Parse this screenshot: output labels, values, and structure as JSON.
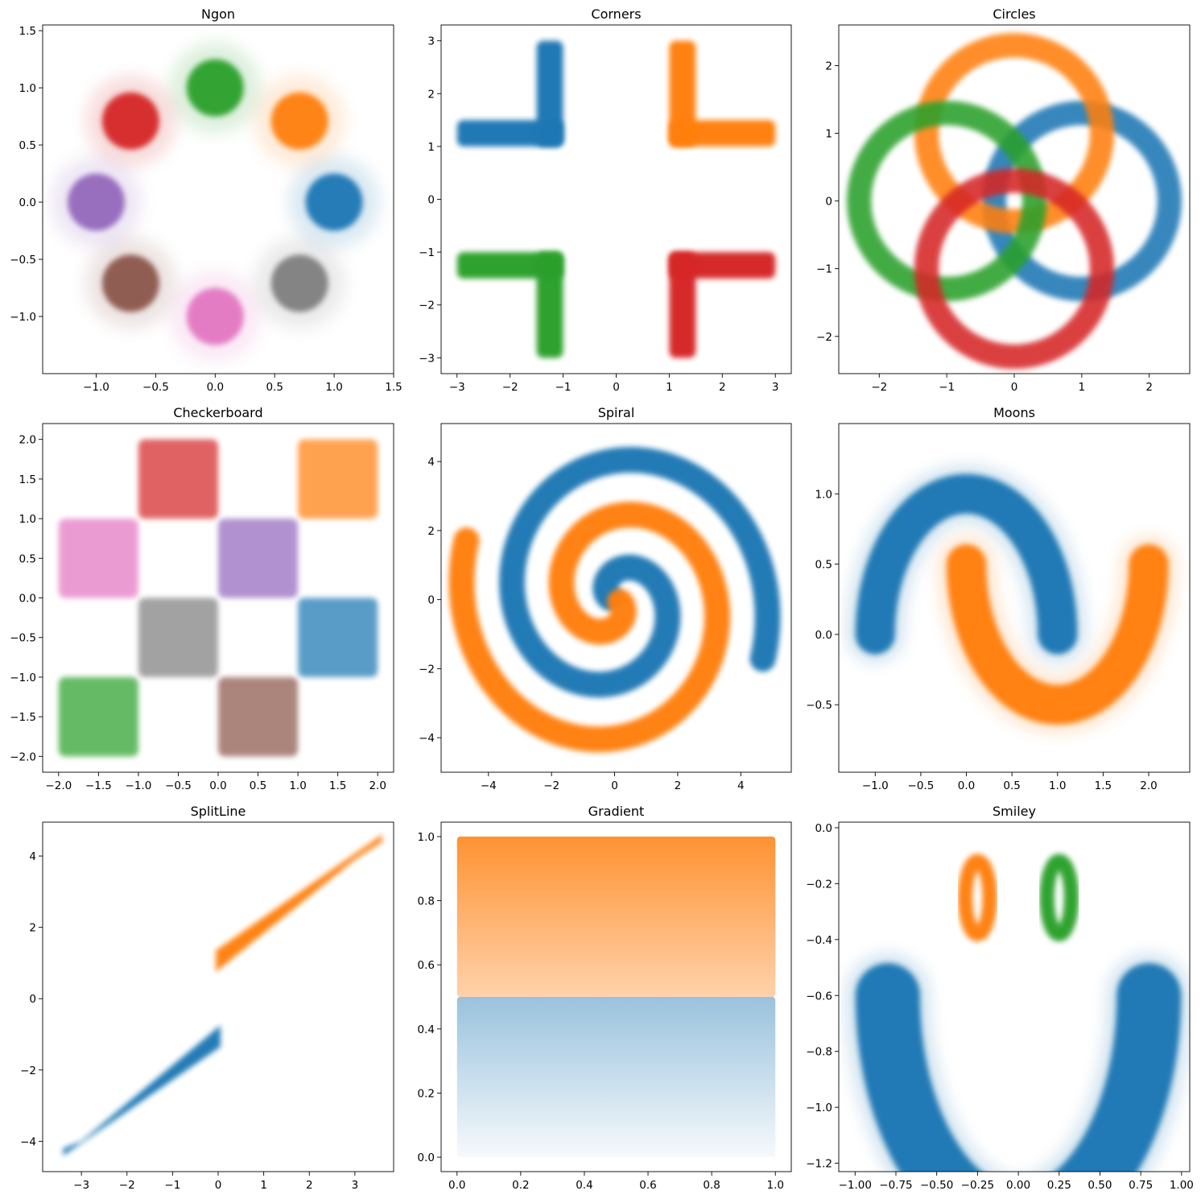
{
  "colors": {
    "blue": "#1f77b4",
    "orange": "#ff7f0e",
    "green": "#2ca02c",
    "red": "#d62728",
    "purple": "#9467bd",
    "brown": "#8c564b",
    "pink": "#e377c2",
    "gray": "#7f7f7f"
  },
  "chart_data": [
    {
      "type": "scatter",
      "title": "Ngon",
      "xlabel": "",
      "ylabel": "",
      "xlim": [
        -1.45,
        1.5
      ],
      "ylim": [
        -1.5,
        1.55
      ],
      "xticks": [
        -1.0,
        -0.5,
        0.0,
        0.5,
        1.0,
        1.5
      ],
      "xtick_labels": [
        "−1.0",
        "−0.5",
        "0.0",
        "0.5",
        "1.0",
        "1.5"
      ],
      "yticks": [
        -1.0,
        -0.5,
        0.0,
        0.5,
        1.0,
        1.5
      ],
      "ytick_labels": [
        "−1.0",
        "−0.5",
        "0.0",
        "0.5",
        "1.0",
        "1.5"
      ],
      "grid": false,
      "legend": false,
      "series": [
        {
          "color": "#1f77b4",
          "shape": "blob",
          "center": [
            1.0,
            0.0
          ],
          "radius": 0.2
        },
        {
          "color": "#ff7f0e",
          "shape": "blob",
          "center": [
            0.71,
            0.71
          ],
          "radius": 0.2
        },
        {
          "color": "#2ca02c",
          "shape": "blob",
          "center": [
            0.0,
            1.0
          ],
          "radius": 0.2
        },
        {
          "color": "#d62728",
          "shape": "blob",
          "center": [
            -0.71,
            0.71
          ],
          "radius": 0.2
        },
        {
          "color": "#9467bd",
          "shape": "blob",
          "center": [
            -1.0,
            0.0
          ],
          "radius": 0.2
        },
        {
          "color": "#8c564b",
          "shape": "blob",
          "center": [
            -0.71,
            -0.71
          ],
          "radius": 0.2
        },
        {
          "color": "#e377c2",
          "shape": "blob",
          "center": [
            0.0,
            -1.0
          ],
          "radius": 0.2
        },
        {
          "color": "#7f7f7f",
          "shape": "blob",
          "center": [
            0.71,
            -0.71
          ],
          "radius": 0.2
        }
      ]
    },
    {
      "type": "scatter",
      "title": "Corners",
      "xlabel": "",
      "ylabel": "",
      "xlim": [
        -3.3,
        3.3
      ],
      "ylim": [
        -3.3,
        3.3
      ],
      "xticks": [
        -3,
        -2,
        -1,
        0,
        1,
        2,
        3
      ],
      "xtick_labels": [
        "−3",
        "−2",
        "−1",
        "0",
        "1",
        "2",
        "3"
      ],
      "yticks": [
        -3,
        -2,
        -1,
        0,
        1,
        2,
        3
      ],
      "ytick_labels": [
        "−3",
        "−2",
        "−1",
        "0",
        "1",
        "2",
        "3"
      ],
      "grid": false,
      "legend": false,
      "series": [
        {
          "color": "#1f77b4",
          "shape": "rects",
          "rects": [
            [
              -3,
              1,
              -1,
              1.5
            ],
            [
              -1.5,
              1,
              -1,
              3
            ]
          ]
        },
        {
          "color": "#ff7f0e",
          "shape": "rects",
          "rects": [
            [
              1,
              1,
              3,
              1.5
            ],
            [
              1,
              1,
              1.5,
              3
            ]
          ]
        },
        {
          "color": "#2ca02c",
          "shape": "rects",
          "rects": [
            [
              -3,
              -1.5,
              -1,
              -1
            ],
            [
              -1.5,
              -3,
              -1,
              -1
            ]
          ]
        },
        {
          "color": "#d62728",
          "shape": "rects",
          "rects": [
            [
              1,
              -1.5,
              3,
              -1
            ],
            [
              1,
              -3,
              1.5,
              -1
            ]
          ]
        }
      ]
    },
    {
      "type": "scatter",
      "title": "Circles",
      "xlabel": "",
      "ylabel": "",
      "xlim": [
        -2.6,
        2.6
      ],
      "ylim": [
        -2.55,
        2.6
      ],
      "xticks": [
        -2,
        -1,
        0,
        1,
        2
      ],
      "xtick_labels": [
        "−2",
        "−1",
        "0",
        "1",
        "2"
      ],
      "yticks": [
        -2,
        -1,
        0,
        1,
        2
      ],
      "ytick_labels": [
        "−2",
        "−1",
        "0",
        "1",
        "2"
      ],
      "grid": false,
      "legend": false,
      "series": [
        {
          "color": "#1f77b4",
          "shape": "ring",
          "center": [
            1,
            0
          ],
          "radius": 1.3,
          "width": 0.18
        },
        {
          "color": "#ff7f0e",
          "shape": "ring",
          "center": [
            0,
            1
          ],
          "radius": 1.3,
          "width": 0.18
        },
        {
          "color": "#2ca02c",
          "shape": "ring",
          "center": [
            -1,
            0
          ],
          "radius": 1.3,
          "width": 0.18
        },
        {
          "color": "#d62728",
          "shape": "ring",
          "center": [
            0,
            -1
          ],
          "radius": 1.3,
          "width": 0.18
        }
      ]
    },
    {
      "type": "scatter",
      "title": "Checkerboard",
      "xlabel": "",
      "ylabel": "",
      "xlim": [
        -2.2,
        2.2
      ],
      "ylim": [
        -2.2,
        2.2
      ],
      "xticks": [
        -2.0,
        -1.5,
        -1.0,
        -0.5,
        0.0,
        0.5,
        1.0,
        1.5,
        2.0
      ],
      "xtick_labels": [
        "−2.0",
        "−1.5",
        "−1.0",
        "−0.5",
        "0.0",
        "0.5",
        "1.0",
        "1.5",
        "2.0"
      ],
      "yticks": [
        -2.0,
        -1.5,
        -1.0,
        -0.5,
        0.0,
        0.5,
        1.0,
        1.5,
        2.0
      ],
      "ytick_labels": [
        "−2.0",
        "−1.5",
        "−1.0",
        "−0.5",
        "0.0",
        "0.5",
        "1.0",
        "1.5",
        "2.0"
      ],
      "grid": false,
      "legend": false,
      "series": [
        {
          "color": "#1f77b4",
          "shape": "rects",
          "rects": [
            [
              1,
              -1,
              2,
              0
            ]
          ]
        },
        {
          "color": "#ff7f0e",
          "shape": "rects",
          "rects": [
            [
              1,
              1,
              2,
              2
            ]
          ]
        },
        {
          "color": "#2ca02c",
          "shape": "rects",
          "rects": [
            [
              -2,
              -2,
              -1,
              -1
            ]
          ]
        },
        {
          "color": "#d62728",
          "shape": "rects",
          "rects": [
            [
              -1,
              1,
              0,
              2
            ]
          ]
        },
        {
          "color": "#9467bd",
          "shape": "rects",
          "rects": [
            [
              0,
              0,
              1,
              1
            ]
          ]
        },
        {
          "color": "#8c564b",
          "shape": "rects",
          "rects": [
            [
              0,
              -2,
              1,
              -1
            ]
          ]
        },
        {
          "color": "#e377c2",
          "shape": "rects",
          "rects": [
            [
              -2,
              0,
              -1,
              1
            ]
          ]
        },
        {
          "color": "#7f7f7f",
          "shape": "rects",
          "rects": [
            [
              -1,
              -1,
              0,
              0
            ]
          ]
        }
      ]
    },
    {
      "type": "scatter",
      "title": "Spiral",
      "xlabel": "",
      "ylabel": "",
      "xlim": [
        -5.5,
        5.6
      ],
      "ylim": [
        -5.0,
        5.1
      ],
      "xticks": [
        -4,
        -2,
        0,
        2,
        4
      ],
      "xtick_labels": [
        "−4",
        "−2",
        "0",
        "2",
        "4"
      ],
      "yticks": [
        -4,
        -2,
        0,
        2,
        4
      ],
      "ytick_labels": [
        "−4",
        "−2",
        "0",
        "2",
        "4"
      ],
      "grid": false,
      "legend": false,
      "series": [
        {
          "color": "#1f77b4",
          "shape": "spiral",
          "sign": 1,
          "rotations": 1.5,
          "max_radius": 5,
          "width": 0.28
        },
        {
          "color": "#ff7f0e",
          "shape": "spiral",
          "sign": -1,
          "rotations": 1.5,
          "max_radius": 5,
          "width": 0.28
        }
      ]
    },
    {
      "type": "scatter",
      "title": "Moons",
      "xlabel": "",
      "ylabel": "",
      "xlim": [
        -1.4,
        2.45
      ],
      "ylim": [
        -0.98,
        1.5
      ],
      "xticks": [
        -1.0,
        -0.5,
        0.0,
        0.5,
        1.0,
        1.5,
        2.0
      ],
      "xtick_labels": [
        "−1.0",
        "−0.5",
        "0.0",
        "0.5",
        "1.0",
        "1.5",
        "2.0"
      ],
      "yticks": [
        -0.5,
        0.0,
        0.5,
        1.0
      ],
      "ytick_labels": [
        "−0.5",
        "0.0",
        "0.5",
        "1.0"
      ],
      "grid": false,
      "legend": false,
      "series": [
        {
          "color": "#1f77b4",
          "shape": "arc",
          "center": [
            0,
            0
          ],
          "radius": 1,
          "from_deg": 0,
          "to_deg": 180,
          "width": 0.2
        },
        {
          "color": "#ff7f0e",
          "shape": "arc",
          "center": [
            1,
            0.5
          ],
          "radius": 1,
          "from_deg": 180,
          "to_deg": 360,
          "width": 0.2
        }
      ]
    },
    {
      "type": "scatter",
      "title": "SplitLine",
      "xlabel": "",
      "ylabel": "",
      "xlim": [
        -3.85,
        3.85
      ],
      "ylim": [
        -4.85,
        4.95
      ],
      "xticks": [
        -3,
        -2,
        -1,
        0,
        1,
        2,
        3
      ],
      "xtick_labels": [
        "−3",
        "−2",
        "−1",
        "0",
        "1",
        "2",
        "3"
      ],
      "yticks": [
        -4,
        -2,
        0,
        2,
        4
      ],
      "ytick_labels": [
        "−4",
        "−2",
        "0",
        "2",
        "4"
      ],
      "grid": false,
      "legend": false,
      "series": [
        {
          "color": "#1f77b4",
          "shape": "polygon",
          "points": [
            [
              -3.4,
              -4.2
            ],
            [
              -3.0,
              -4.0
            ],
            [
              0.05,
              -0.75
            ],
            [
              0.05,
              -1.35
            ],
            [
              -3.4,
              -4.4
            ]
          ]
        },
        {
          "color": "#ff7f0e",
          "shape": "polygon",
          "points": [
            [
              3.6,
              4.4
            ],
            [
              3.0,
              3.9
            ],
            [
              -0.05,
              0.75
            ],
            [
              -0.05,
              1.35
            ],
            [
              3.6,
              4.6
            ]
          ]
        }
      ]
    },
    {
      "type": "scatter",
      "title": "Gradient",
      "xlabel": "",
      "ylabel": "",
      "xlim": [
        -0.05,
        1.05
      ],
      "ylim": [
        -0.045,
        1.045
      ],
      "xticks": [
        0.0,
        0.2,
        0.4,
        0.6,
        0.8,
        1.0
      ],
      "xtick_labels": [
        "0.0",
        "0.2",
        "0.4",
        "0.6",
        "0.8",
        "1.0"
      ],
      "yticks": [
        0.0,
        0.2,
        0.4,
        0.6,
        0.8,
        1.0
      ],
      "ytick_labels": [
        "0.0",
        "0.2",
        "0.4",
        "0.6",
        "0.8",
        "1.0"
      ],
      "grid": false,
      "legend": false,
      "series": [
        {
          "color": "#1f77b4",
          "shape": "gradient",
          "rect": [
            0,
            0,
            1,
            0.5
          ],
          "dense_edge": "top"
        },
        {
          "color": "#ff7f0e",
          "shape": "gradient",
          "rect": [
            0,
            0.5,
            1,
            1
          ],
          "dense_edge": "top"
        }
      ]
    },
    {
      "type": "scatter",
      "title": "Smiley",
      "xlabel": "",
      "ylabel": "",
      "xlim": [
        -1.1,
        1.05
      ],
      "ylim": [
        -1.23,
        0.02
      ],
      "xticks": [
        -1.0,
        -0.75,
        -0.5,
        -0.25,
        0.0,
        0.25,
        0.5,
        0.75,
        1.0
      ],
      "xtick_labels": [
        "−1.00",
        "−0.75",
        "−0.50",
        "−0.25",
        "0.00",
        "0.25",
        "0.50",
        "0.75",
        "1.00"
      ],
      "yticks": [
        -1.2,
        -1.0,
        -0.8,
        -0.6,
        -0.4,
        -0.2,
        0.0
      ],
      "ytick_labels": [
        "−1.2",
        "−1.0",
        "−0.8",
        "−0.6",
        "−0.4",
        "−0.2",
        "0.0"
      ],
      "grid": false,
      "legend": false,
      "series": [
        {
          "color": "#1f77b4",
          "shape": "arc",
          "center": [
            0,
            -0.6
          ],
          "radius": 0.8,
          "from_deg": 180,
          "to_deg": 360,
          "width": 0.19
        },
        {
          "color": "#ff7f0e",
          "shape": "ellipse",
          "center": [
            -0.25,
            -0.25
          ],
          "rx": 0.075,
          "ry": 0.13
        },
        {
          "color": "#2ca02c",
          "shape": "ellipse",
          "center": [
            0.25,
            -0.25
          ],
          "rx": 0.075,
          "ry": 0.13
        }
      ]
    }
  ]
}
